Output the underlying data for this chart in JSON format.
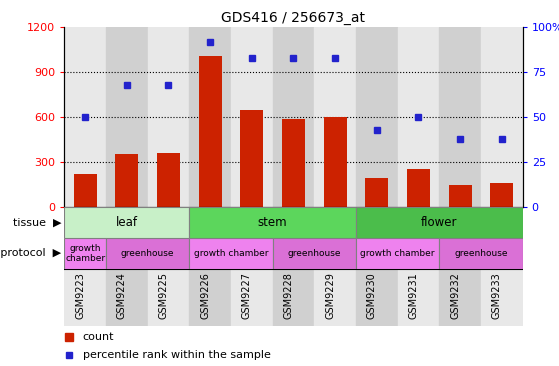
{
  "title": "GDS416 / 256673_at",
  "samples": [
    "GSM9223",
    "GSM9224",
    "GSM9225",
    "GSM9226",
    "GSM9227",
    "GSM9228",
    "GSM9229",
    "GSM9230",
    "GSM9231",
    "GSM9232",
    "GSM9233"
  ],
  "counts": [
    220,
    355,
    360,
    1010,
    645,
    590,
    600,
    190,
    250,
    145,
    160
  ],
  "percentiles": [
    50,
    68,
    68,
    92,
    83,
    83,
    83,
    43,
    50,
    38,
    38
  ],
  "tissue_groups": [
    {
      "label": "leaf",
      "start": 0,
      "end": 3,
      "color": "#C8F0C8"
    },
    {
      "label": "stem",
      "start": 3,
      "end": 7,
      "color": "#5CD65C"
    },
    {
      "label": "flower",
      "start": 7,
      "end": 11,
      "color": "#4BBD4B"
    }
  ],
  "protocol_groups": [
    {
      "label": "growth\nchamber",
      "start": 0,
      "end": 1,
      "color": "#EE82EE"
    },
    {
      "label": "greenhouse",
      "start": 1,
      "end": 3,
      "color": "#DA70D6"
    },
    {
      "label": "growth chamber",
      "start": 3,
      "end": 5,
      "color": "#EE82EE"
    },
    {
      "label": "greenhouse",
      "start": 5,
      "end": 7,
      "color": "#DA70D6"
    },
    {
      "label": "growth chamber",
      "start": 7,
      "end": 9,
      "color": "#EE82EE"
    },
    {
      "label": "greenhouse",
      "start": 9,
      "end": 11,
      "color": "#DA70D6"
    }
  ],
  "left_ylim": [
    0,
    1200
  ],
  "right_ylim": [
    0,
    100
  ],
  "left_yticks": [
    0,
    300,
    600,
    900,
    1200
  ],
  "right_yticks": [
    0,
    25,
    50,
    75,
    100
  ],
  "bar_color": "#CC2200",
  "dot_color": "#2222CC",
  "col_bg_odd": "#E8E8E8",
  "col_bg_even": "#D0D0D0"
}
